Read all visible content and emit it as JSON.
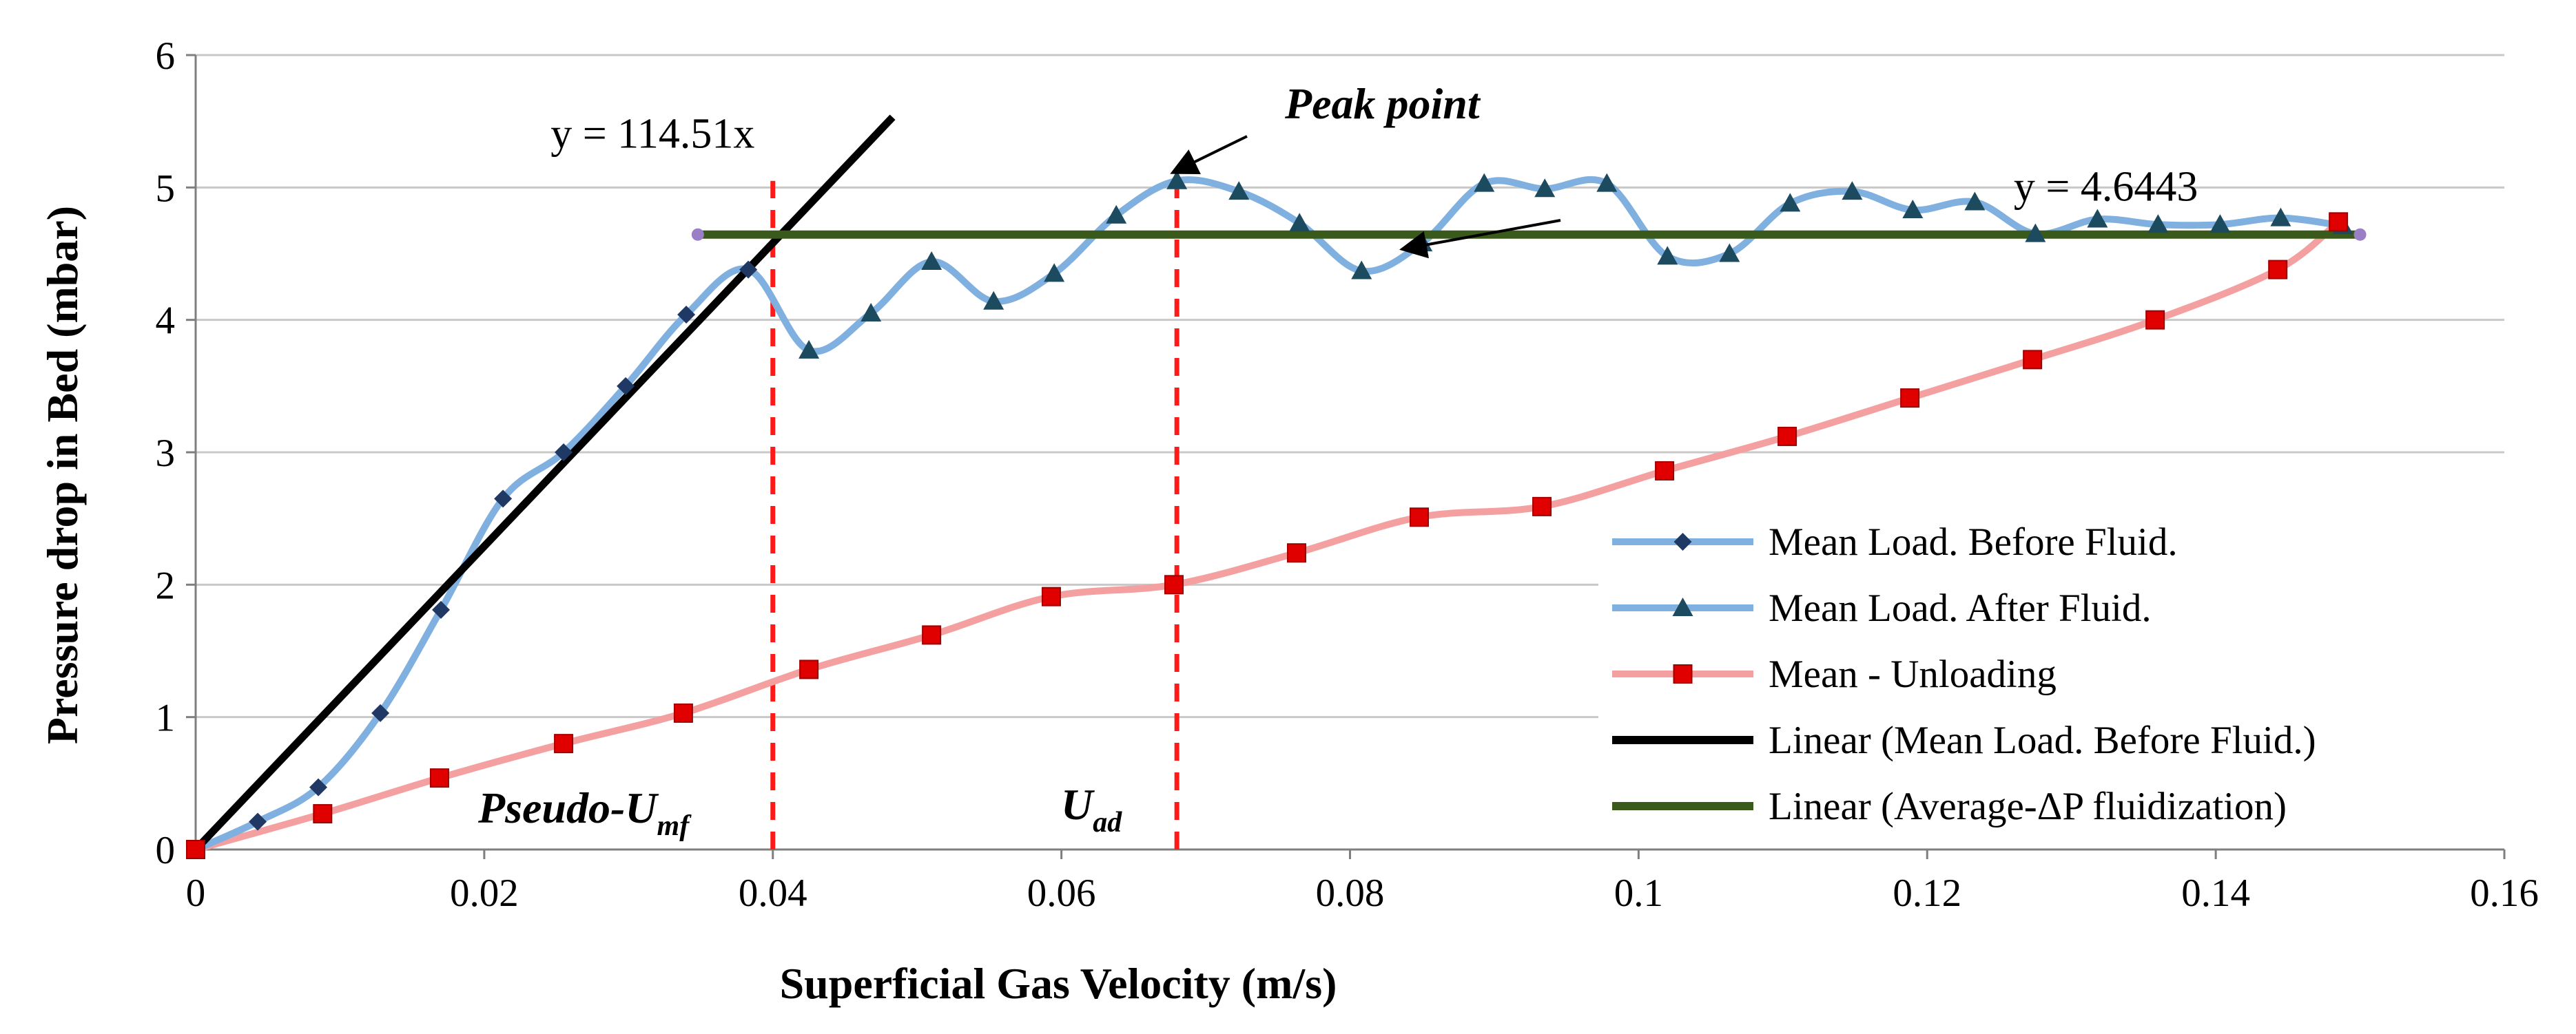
{
  "chart_data": {
    "type": "line",
    "xlabel": "Superficial Gas Velocity (m/s)",
    "ylabel": "Pressure drop in Bed (mbar)",
    "xlim": [
      0,
      0.16
    ],
    "ylim": [
      0,
      6
    ],
    "x_ticks": [
      "0",
      "0.02",
      "0.04",
      "0.06",
      "0.08",
      "0.1",
      "0.12",
      "0.14",
      "0.16"
    ],
    "y_ticks": [
      "0",
      "1",
      "2",
      "3",
      "4",
      "5",
      "6"
    ],
    "grid": "horizontal",
    "legend_position": "bottom-right",
    "series": [
      {
        "name": "Mean Load. Before Fluid.",
        "marker": "diamond",
        "color": "#7fb0df",
        "marker_color": "#1f3864",
        "points": [
          [
            0,
            0
          ],
          [
            0.0043,
            0.21
          ],
          [
            0.0085,
            0.47
          ],
          [
            0.0128,
            1.03
          ],
          [
            0.017,
            1.81
          ],
          [
            0.0213,
            2.65
          ],
          [
            0.0255,
            3.0
          ],
          [
            0.0298,
            3.5
          ],
          [
            0.034,
            4.04
          ],
          [
            0.0383,
            4.38
          ]
        ]
      },
      {
        "name": "Mean Load. After Fluid.",
        "marker": "triangle",
        "color": "#7fb0df",
        "marker_color": "#1c4a5e",
        "points": [
          [
            0.0383,
            4.38
          ],
          [
            0.0425,
            3.77
          ],
          [
            0.0468,
            4.05
          ],
          [
            0.051,
            4.44
          ],
          [
            0.0553,
            4.14
          ],
          [
            0.0595,
            4.35
          ],
          [
            0.0638,
            4.79
          ],
          [
            0.068,
            5.05
          ],
          [
            0.0723,
            4.97
          ],
          [
            0.0765,
            4.73
          ],
          [
            0.0808,
            4.37
          ],
          [
            0.085,
            4.58
          ],
          [
            0.0893,
            5.03
          ],
          [
            0.0935,
            4.99
          ],
          [
            0.0978,
            5.03
          ],
          [
            0.102,
            4.48
          ],
          [
            0.1063,
            4.5
          ],
          [
            0.1105,
            4.88
          ],
          [
            0.1148,
            4.97
          ],
          [
            0.119,
            4.83
          ],
          [
            0.1233,
            4.89
          ],
          [
            0.1275,
            4.65
          ],
          [
            0.1318,
            4.76
          ],
          [
            0.136,
            4.72
          ],
          [
            0.1403,
            4.72
          ],
          [
            0.1445,
            4.77
          ],
          [
            0.1488,
            4.71
          ]
        ]
      },
      {
        "name": "Mean - Unloading",
        "marker": "square",
        "color": "#f4a0a0",
        "marker_color": "#e00000",
        "points": [
          [
            0,
            0
          ],
          [
            0.0088,
            0.27
          ],
          [
            0.0169,
            0.54
          ],
          [
            0.0255,
            0.8
          ],
          [
            0.0338,
            1.03
          ],
          [
            0.0425,
            1.36
          ],
          [
            0.051,
            1.62
          ],
          [
            0.0593,
            1.91
          ],
          [
            0.0678,
            2.0
          ],
          [
            0.0763,
            2.24
          ],
          [
            0.0848,
            2.51
          ],
          [
            0.0933,
            2.59
          ],
          [
            0.1018,
            2.86
          ],
          [
            0.1103,
            3.12
          ],
          [
            0.1188,
            3.41
          ],
          [
            0.1273,
            3.7
          ],
          [
            0.1358,
            4.0
          ],
          [
            0.1443,
            4.38
          ],
          [
            0.1485,
            4.74
          ]
        ]
      },
      {
        "name": "Linear (Mean Load. Before Fluid.)",
        "marker": "none",
        "color": "#000000",
        "slope": 114.51,
        "x_range": [
          0,
          0.0483
        ]
      },
      {
        "name": "Linear (Average-ΔP fluidization)",
        "marker": "none",
        "color": "#3a5a1c",
        "y_value": 4.6443,
        "x_range": [
          0.0348,
          0.15
        ]
      }
    ],
    "equations": [
      {
        "text": "y = 114.51x",
        "x": 0.0246,
        "y": 5.3
      },
      {
        "text": "y = 4.6443",
        "x": 0.126,
        "y": 4.9
      }
    ],
    "annotations": {
      "peak_point": "Peak point",
      "pseudo_umf_base": "Pseudo-U",
      "pseudo_umf_sub": "mf",
      "uad_base": "U",
      "uad_sub": "ad",
      "pseudo_umf_x": 0.04,
      "uad_x": 0.068
    }
  }
}
